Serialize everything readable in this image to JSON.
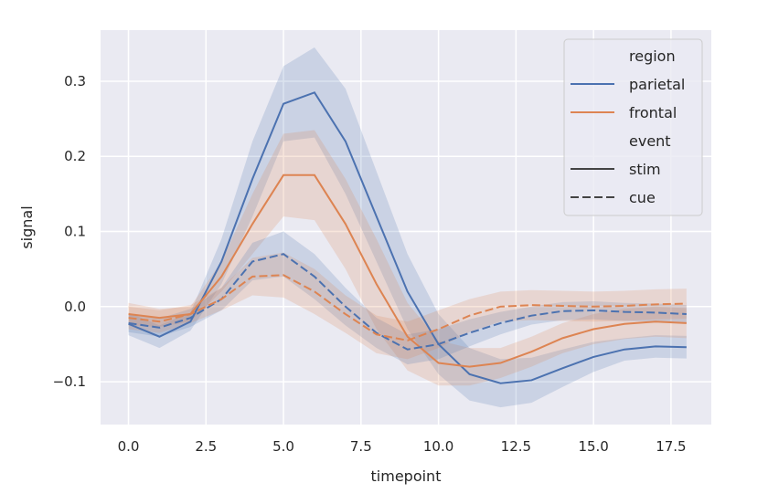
{
  "chart_data": {
    "type": "line",
    "title": "",
    "xlabel": "timepoint",
    "ylabel": "signal",
    "xlim": [
      -0.9,
      18.8
    ],
    "ylim": [
      -0.157,
      0.368
    ],
    "grid": true,
    "xticks": [
      0.0,
      2.5,
      5.0,
      7.5,
      10.0,
      12.5,
      15.0,
      17.5
    ],
    "xtick_labels": [
      "0.0",
      "2.5",
      "5.0",
      "7.5",
      "10.0",
      "12.5",
      "15.0",
      "17.5"
    ],
    "yticks": [
      -0.1,
      0.0,
      0.1,
      0.2,
      0.3
    ],
    "ytick_labels": [
      "−0.1",
      "0.0",
      "0.1",
      "0.2",
      "0.3"
    ],
    "legend": {
      "placement": "top-right",
      "hue_title": "region",
      "hue_entries": [
        {
          "label": "parietal",
          "color": "#4c72b0"
        },
        {
          "label": "frontal",
          "color": "#dd8452"
        }
      ],
      "style_title": "event",
      "style_entries": [
        {
          "label": "stim",
          "dash": "solid"
        },
        {
          "label": "cue",
          "dash": "dashed"
        }
      ]
    },
    "x": [
      0,
      1,
      2,
      3,
      4,
      5,
      6,
      7,
      8,
      9,
      10,
      11,
      12,
      13,
      14,
      15,
      16,
      17,
      18
    ],
    "series": [
      {
        "region": "parietal",
        "event": "stim",
        "color": "#4c72b0",
        "dashed": false,
        "values": [
          -0.023,
          -0.04,
          -0.02,
          0.06,
          0.17,
          0.27,
          0.285,
          0.22,
          0.12,
          0.02,
          -0.05,
          -0.09,
          -0.102,
          -0.098,
          -0.082,
          -0.067,
          -0.057,
          -0.053,
          -0.054
        ],
        "ci": [
          0.015,
          0.015,
          0.012,
          0.03,
          0.05,
          0.05,
          0.06,
          0.07,
          0.06,
          0.05,
          0.04,
          0.035,
          0.032,
          0.03,
          0.025,
          0.02,
          0.015,
          0.015,
          0.015
        ]
      },
      {
        "region": "frontal",
        "event": "stim",
        "color": "#dd8452",
        "dashed": false,
        "values": [
          -0.01,
          -0.015,
          -0.01,
          0.04,
          0.11,
          0.175,
          0.175,
          0.11,
          0.03,
          -0.04,
          -0.075,
          -0.08,
          -0.075,
          -0.06,
          -0.042,
          -0.03,
          -0.023,
          -0.02,
          -0.022
        ],
        "ci": [
          0.015,
          0.012,
          0.01,
          0.02,
          0.04,
          0.055,
          0.06,
          0.06,
          0.06,
          0.045,
          0.03,
          0.025,
          0.02,
          0.02,
          0.02,
          0.02,
          0.02,
          0.02,
          0.02
        ]
      },
      {
        "region": "parietal",
        "event": "cue",
        "color": "#4c72b0",
        "dashed": true,
        "values": [
          -0.022,
          -0.028,
          -0.015,
          0.01,
          0.06,
          0.07,
          0.04,
          0.0,
          -0.035,
          -0.057,
          -0.05,
          -0.035,
          -0.022,
          -0.012,
          -0.006,
          -0.005,
          -0.007,
          -0.008,
          -0.01
        ],
        "ci": [
          0.012,
          0.012,
          0.012,
          0.015,
          0.025,
          0.03,
          0.03,
          0.025,
          0.02,
          0.02,
          0.02,
          0.018,
          0.015,
          0.012,
          0.012,
          0.012,
          0.012,
          0.012,
          0.012
        ]
      },
      {
        "region": "frontal",
        "event": "cue",
        "color": "#dd8452",
        "dashed": true,
        "values": [
          -0.015,
          -0.02,
          -0.01,
          0.01,
          0.04,
          0.042,
          0.02,
          -0.01,
          -0.037,
          -0.045,
          -0.03,
          -0.012,
          0.0,
          0.002,
          0.001,
          0.0,
          0.001,
          0.003,
          0.004
        ],
        "ci": [
          0.015,
          0.015,
          0.012,
          0.015,
          0.025,
          0.03,
          0.03,
          0.025,
          0.025,
          0.025,
          0.025,
          0.022,
          0.02,
          0.02,
          0.02,
          0.02,
          0.02,
          0.02,
          0.02
        ]
      }
    ]
  }
}
